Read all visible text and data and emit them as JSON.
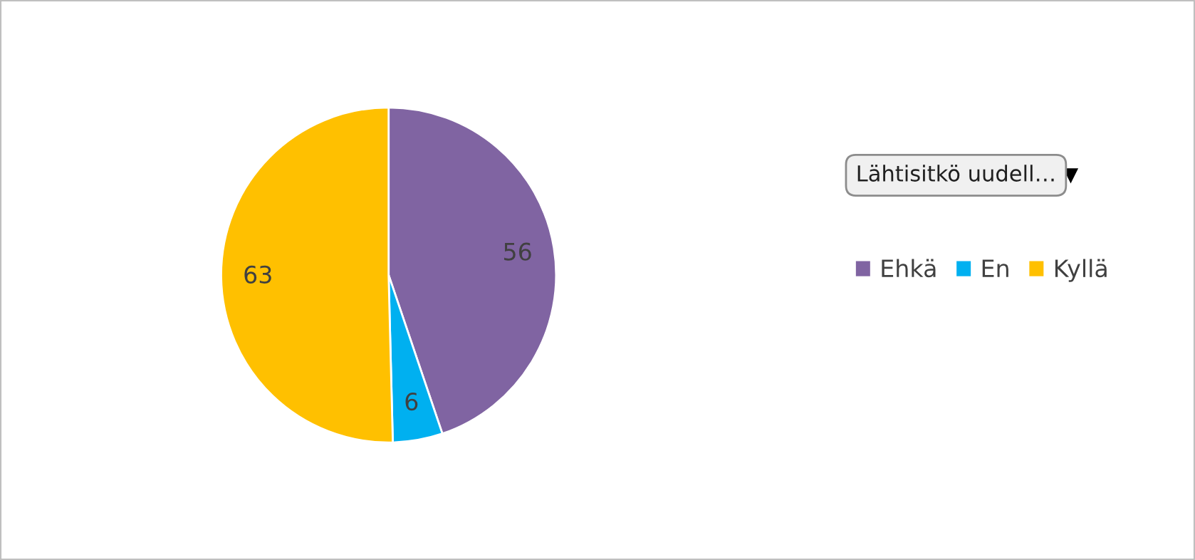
{
  "chart_data": {
    "type": "pie",
    "categories": [
      "Ehkä",
      "En",
      "Kyllä"
    ],
    "values": [
      56,
      6,
      63
    ],
    "colors": [
      "#8064a2",
      "#00b0f0",
      "#ffc000"
    ],
    "legend_title": "Lähtisitkö uudell…",
    "legend": "right",
    "data_labels": true
  }
}
